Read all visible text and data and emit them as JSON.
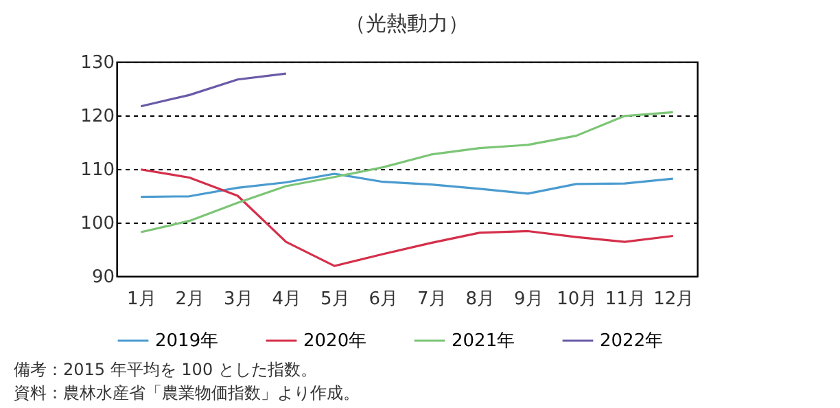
{
  "chart_data": {
    "type": "line",
    "title": "（光熱動力）",
    "categories": [
      "1月",
      "2月",
      "3月",
      "4月",
      "5月",
      "6月",
      "7月",
      "8月",
      "9月",
      "10月",
      "11月",
      "12月"
    ],
    "series": [
      {
        "name": "2019年",
        "color": "#4a9bd0",
        "values": [
          104.8,
          104.9,
          106.5,
          107.5,
          109.1,
          107.6,
          107.1,
          106.3,
          105.4,
          107.2,
          107.3,
          108.2
        ]
      },
      {
        "name": "2020年",
        "color": "#d42f4a",
        "values": [
          109.9,
          108.4,
          105.0,
          96.4,
          91.9,
          94.1,
          96.2,
          98.1,
          98.4,
          97.3,
          96.4,
          97.5
        ]
      },
      {
        "name": "2021年",
        "color": "#7cc576",
        "values": [
          98.2,
          100.3,
          103.7,
          106.8,
          108.5,
          110.3,
          112.7,
          113.9,
          114.5,
          116.2,
          119.9,
          120.6
        ]
      },
      {
        "name": "2022年",
        "color": "#6a5aa8",
        "values": [
          121.7,
          123.8,
          126.7,
          127.8,
          null,
          null,
          null,
          null,
          null,
          null,
          null,
          null
        ]
      }
    ],
    "ylim": [
      90,
      130
    ],
    "yticks": [
      90,
      100,
      110,
      120,
      130
    ],
    "grid": "y",
    "legend": "bottom",
    "marker": "none",
    "line_style": "solid",
    "annotations": [
      "備考：2015 年平均を 100 とした指数。",
      "資料：農林水産省「農業物価指数」より作成。"
    ]
  }
}
